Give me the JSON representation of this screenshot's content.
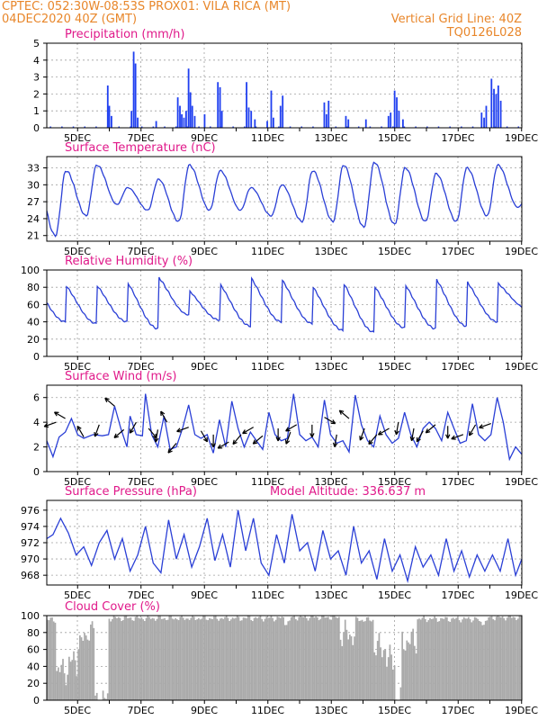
{
  "header": {
    "line1_left": "CPTEC:   052:30W-08:53S   PROX01: VILA RICA (MT)",
    "line2_left": "04DEC2020 40Z (GMT)",
    "line2_right": "Vertical Grid Line: 40Z",
    "line3_right": "TQ0126L028"
  },
  "colors": {
    "header": "#e8862a",
    "title": "#e0198a",
    "line": "#2a3fd6",
    "bar": "#1f3ff0",
    "cloud": "#aaaaaa",
    "grid": "#a0a0a0"
  },
  "x_ticks": [
    "5DEC",
    "7DEC",
    "9DEC",
    "11DEC",
    "13DEC",
    "15DEC",
    "17DEC",
    "19DEC"
  ],
  "chart_data": [
    {
      "id": "precip",
      "type": "bar",
      "title": "Precipitation (mm/h)",
      "ylim": [
        0,
        5
      ],
      "yticks": [
        0,
        1,
        2,
        3,
        4,
        5
      ],
      "x_unit": "days since 04DEC2020",
      "x_range": [
        0,
        15.4
      ],
      "events": [
        [
          1.98,
          2.5
        ],
        [
          2.03,
          1.3
        ],
        [
          2.1,
          0.7
        ],
        [
          2.75,
          1.0
        ],
        [
          2.82,
          4.5
        ],
        [
          2.88,
          3.8
        ],
        [
          2.95,
          0.6
        ],
        [
          3.55,
          0.4
        ],
        [
          4.25,
          1.8
        ],
        [
          4.32,
          1.3
        ],
        [
          4.38,
          0.8
        ],
        [
          4.45,
          0.6
        ],
        [
          4.52,
          1.0
        ],
        [
          4.6,
          3.5
        ],
        [
          4.66,
          2.1
        ],
        [
          4.72,
          1.3
        ],
        [
          4.8,
          0.7
        ],
        [
          5.12,
          0.8
        ],
        [
          5.55,
          2.7
        ],
        [
          5.62,
          2.4
        ],
        [
          5.68,
          1.0
        ],
        [
          6.48,
          2.7
        ],
        [
          6.55,
          1.2
        ],
        [
          6.63,
          1.0
        ],
        [
          6.75,
          0.5
        ],
        [
          7.15,
          0.4
        ],
        [
          7.28,
          2.2
        ],
        [
          7.35,
          0.6
        ],
        [
          7.58,
          1.3
        ],
        [
          7.65,
          1.9
        ],
        [
          9.0,
          1.5
        ],
        [
          9.07,
          0.8
        ],
        [
          9.14,
          1.6
        ],
        [
          9.7,
          0.7
        ],
        [
          9.78,
          0.5
        ],
        [
          10.35,
          0.5
        ],
        [
          11.08,
          0.7
        ],
        [
          11.15,
          0.9
        ],
        [
          11.28,
          2.2
        ],
        [
          11.35,
          1.8
        ],
        [
          11.42,
          1.0
        ],
        [
          11.55,
          0.5
        ],
        [
          14.1,
          0.9
        ],
        [
          14.18,
          0.6
        ],
        [
          14.25,
          1.3
        ],
        [
          14.42,
          2.9
        ],
        [
          14.5,
          2.3
        ],
        [
          14.57,
          2.0
        ],
        [
          14.64,
          2.5
        ],
        [
          14.72,
          1.6
        ]
      ]
    },
    {
      "id": "temp",
      "type": "line",
      "title": "Surface Temperature (nC)",
      "ylim": [
        20,
        35
      ],
      "yticks": [
        21,
        24,
        27,
        30,
        33
      ],
      "x_range": [
        0,
        15.4
      ],
      "daily_low": [
        21,
        24.5,
        26.5,
        25.5,
        23.5,
        25.5,
        25.5,
        24.5,
        23.5,
        23.5,
        22.5,
        23,
        23.5,
        23.5,
        24.5,
        26
      ],
      "daily_high": [
        32.5,
        33.5,
        29.5,
        31,
        33.5,
        32.5,
        29.5,
        30,
        32.5,
        33.5,
        34,
        33,
        32,
        33,
        33.5,
        28.5
      ]
    },
    {
      "id": "rh",
      "type": "line",
      "title": "Relative Humidity (%)",
      "ylim": [
        0,
        100
      ],
      "yticks": [
        0,
        20,
        40,
        60,
        80,
        100
      ],
      "x_range": [
        0,
        15.4
      ],
      "daily_low": [
        40,
        38,
        40,
        32,
        48,
        42,
        35,
        40,
        38,
        30,
        28,
        33,
        32,
        35,
        40,
        55
      ],
      "daily_high": [
        90,
        90,
        95,
        100,
        82,
        92,
        100,
        98,
        90,
        95,
        90,
        92,
        100,
        95,
        90,
        75
      ]
    },
    {
      "id": "wind",
      "type": "line",
      "title": "Surface Wind (m/s)",
      "ylim": [
        0,
        7
      ],
      "yticks": [
        0,
        2,
        4,
        6
      ],
      "x_range": [
        0,
        15.4
      ],
      "series": [
        {
          "x": [
            0,
            0.2,
            0.4,
            0.6,
            0.8,
            1.0,
            1.2,
            1.5,
            1.8,
            2.0,
            2.2,
            2.4,
            2.6,
            2.7,
            2.9,
            3.1,
            3.2,
            3.4,
            3.6,
            3.8,
            4.0,
            4.2,
            4.4,
            4.6,
            4.8,
            5.0,
            5.2,
            5.4,
            5.6,
            5.8,
            6.0,
            6.2,
            6.4,
            6.6,
            6.8,
            7.0,
            7.2,
            7.4,
            7.6,
            7.8,
            8.0,
            8.2,
            8.4,
            8.6,
            8.8,
            9.0,
            9.2,
            9.4,
            9.6,
            9.8,
            10.0,
            10.2,
            10.4,
            10.6,
            10.8,
            11.0,
            11.2,
            11.4,
            11.6,
            11.8,
            12.0,
            12.2,
            12.4,
            12.6,
            12.8,
            13.0,
            13.2,
            13.4,
            13.6,
            13.8,
            14.0,
            14.2,
            14.4,
            14.6,
            14.8,
            15.0,
            15.2,
            15.4
          ],
          "values": [
            2.5,
            1.2,
            2.8,
            3.2,
            4.3,
            3.0,
            2.7,
            3.0,
            2.9,
            3.0,
            5.3,
            3.5,
            2.0,
            4.5,
            3.0,
            2.9,
            6.3,
            3.0,
            2.0,
            4.5,
            1.8,
            2.0,
            3.5,
            5.4,
            3.0,
            2.7,
            3.0,
            1.5,
            4.2,
            2.0,
            5.7,
            3.5,
            2.0,
            3.2,
            2.5,
            1.8,
            4.8,
            3.0,
            2.5,
            2.7,
            6.3,
            3.0,
            2.5,
            2.8,
            2.0,
            5.8,
            3.0,
            2.3,
            2.5,
            1.6,
            6.2,
            3.8,
            2.5,
            2.0,
            4.5,
            3.0,
            2.3,
            2.7,
            4.8,
            3.0,
            2.0,
            3.5,
            4.0,
            3.5,
            2.5,
            4.8,
            3.5,
            2.3,
            2.5,
            5.5,
            3.0,
            2.5,
            3.0,
            6.0,
            4.0,
            1.0,
            2.0,
            1.4
          ]
        }
      ],
      "arrows": [
        [
          0.3,
          4.0,
          200
        ],
        [
          0.6,
          4.3,
          150
        ],
        [
          1.2,
          2.8,
          120
        ],
        [
          1.7,
          3.8,
          250
        ],
        [
          2.2,
          5.3,
          140
        ],
        [
          2.5,
          3.4,
          220
        ],
        [
          2.9,
          4.0,
          240
        ],
        [
          3.3,
          3.5,
          310
        ],
        [
          3.6,
          3.4,
          260
        ],
        [
          3.9,
          4.0,
          120
        ],
        [
          4.2,
          2.3,
          230
        ],
        [
          4.6,
          3.6,
          200
        ],
        [
          5.0,
          3.3,
          300
        ],
        [
          5.4,
          3.0,
          270
        ],
        [
          5.9,
          2.4,
          210
        ],
        [
          6.3,
          3.0,
          230
        ],
        [
          6.7,
          3.6,
          210
        ],
        [
          7.0,
          2.9,
          220
        ],
        [
          7.5,
          3.5,
          270
        ],
        [
          7.9,
          3.2,
          250
        ],
        [
          8.1,
          3.8,
          210
        ],
        [
          8.6,
          3.8,
          270
        ],
        [
          9.0,
          4.4,
          330
        ],
        [
          9.4,
          3.0,
          260
        ],
        [
          9.8,
          4.3,
          140
        ],
        [
          10.3,
          3.5,
          250
        ],
        [
          10.7,
          3.0,
          230
        ],
        [
          11.1,
          3.5,
          210
        ],
        [
          11.4,
          4.0,
          260
        ],
        [
          11.9,
          3.5,
          260
        ],
        [
          12.2,
          3.3,
          240
        ],
        [
          12.6,
          3.8,
          220
        ],
        [
          13.0,
          3.7,
          270
        ],
        [
          13.5,
          3.0,
          200
        ],
        [
          13.9,
          3.8,
          240
        ],
        [
          14.4,
          3.9,
          200
        ]
      ]
    },
    {
      "id": "pres",
      "type": "line",
      "title": "Surface Pressure (hPa)",
      "annotation": "Model Altitude: 336.637 m",
      "ylim": [
        966.8,
        977.2
      ],
      "yticks": [
        968,
        970,
        972,
        974,
        976
      ],
      "x_range": [
        0,
        15.4
      ],
      "series": [
        {
          "x": [
            0,
            0.2,
            0.45,
            0.7,
            0.95,
            1.2,
            1.45,
            1.7,
            1.95,
            2.2,
            2.45,
            2.7,
            2.95,
            3.2,
            3.45,
            3.7,
            3.95,
            4.2,
            4.45,
            4.7,
            4.95,
            5.2,
            5.45,
            5.7,
            5.95,
            6.2,
            6.45,
            6.7,
            6.95,
            7.2,
            7.45,
            7.7,
            7.95,
            8.2,
            8.45,
            8.7,
            8.95,
            9.2,
            9.45,
            9.7,
            9.95,
            10.2,
            10.45,
            10.7,
            10.95,
            11.2,
            11.45,
            11.7,
            11.95,
            12.2,
            12.45,
            12.7,
            12.95,
            13.2,
            13.45,
            13.7,
            13.95,
            14.2,
            14.45,
            14.7,
            14.95,
            15.2,
            15.4
          ],
          "values": [
            972.5,
            973.0,
            975.0,
            973.2,
            970.5,
            971.5,
            969.2,
            972.0,
            973.5,
            970.0,
            972.5,
            968.5,
            970.5,
            974.0,
            969.5,
            968.3,
            974.8,
            970.0,
            973.0,
            969.0,
            971.5,
            975.0,
            969.8,
            973.0,
            969.0,
            976.0,
            971.0,
            975.0,
            969.5,
            968.0,
            973.0,
            969.5,
            975.5,
            971.0,
            972.0,
            968.5,
            973.5,
            970.0,
            971.0,
            968.0,
            974.0,
            969.5,
            971.0,
            967.5,
            972.5,
            968.5,
            970.5,
            967.3,
            971.5,
            969.0,
            970.5,
            968.0,
            972.5,
            968.5,
            971.0,
            967.8,
            970.5,
            968.5,
            970.5,
            968.5,
            972.5,
            968.0,
            970.0
          ]
        }
      ]
    },
    {
      "id": "cloud",
      "type": "bar",
      "title": "Cloud Cover (%)",
      "ylim": [
        0,
        100
      ],
      "yticks": [
        0,
        20,
        40,
        60,
        80,
        100
      ],
      "x_range": [
        0,
        15.4
      ],
      "segments": [
        [
          0,
          0.3,
          95
        ],
        [
          0.3,
          0.7,
          35
        ],
        [
          0.7,
          1.0,
          45
        ],
        [
          1.0,
          1.3,
          70
        ],
        [
          1.3,
          1.55,
          85
        ],
        [
          1.55,
          2.0,
          0
        ],
        [
          2.0,
          7.7,
          97
        ],
        [
          7.7,
          7.9,
          92
        ],
        [
          7.9,
          9.5,
          98
        ],
        [
          9.5,
          10.0,
          78
        ],
        [
          10.0,
          10.6,
          95
        ],
        [
          10.6,
          11.0,
          62
        ],
        [
          11.0,
          11.3,
          48
        ],
        [
          11.3,
          11.5,
          0
        ],
        [
          11.5,
          12.0,
          70
        ],
        [
          12.0,
          14.0,
          96
        ],
        [
          14.0,
          14.3,
          92
        ],
        [
          14.3,
          15.4,
          98
        ]
      ]
    }
  ]
}
